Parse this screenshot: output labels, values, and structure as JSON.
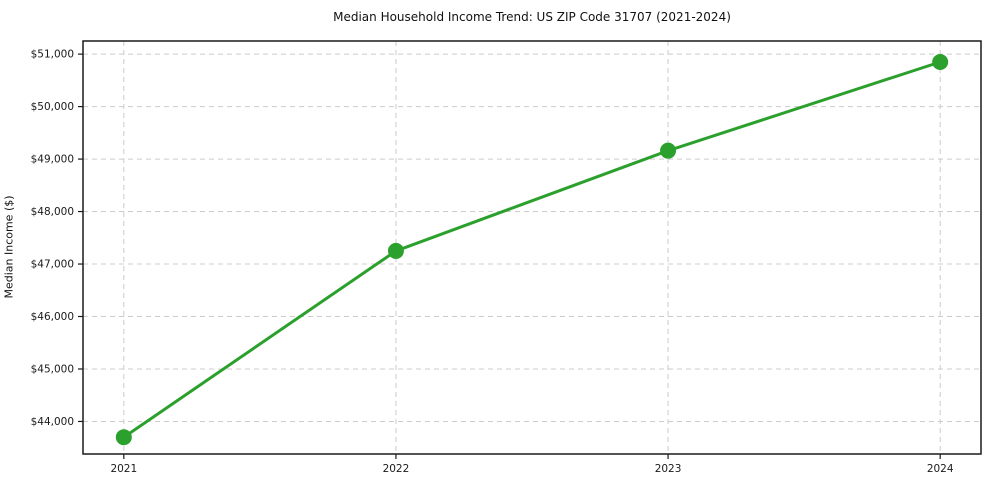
{
  "chart_data": {
    "type": "line",
    "title": "Median Household Income Trend: US ZIP Code 31707 (2021-2024)",
    "xlabel": "",
    "ylabel": "Median Income ($)",
    "x": [
      2021,
      2022,
      2023,
      2024
    ],
    "categories": [
      "2021",
      "2022",
      "2023",
      "2024"
    ],
    "series": [
      {
        "name": "Median Household Income",
        "values": [
          43700,
          47250,
          49160,
          50850
        ]
      }
    ],
    "xlim": [
      2020.85,
      2024.15
    ],
    "ylim": [
      43380,
      51250
    ],
    "yticks": [
      44000,
      45000,
      46000,
      47000,
      48000,
      49000,
      50000,
      51000
    ],
    "ytick_labels": [
      "$44,000",
      "$45,000",
      "$46,000",
      "$47,000",
      "$48,000",
      "$49,000",
      "$50,000",
      "$51,000"
    ],
    "xticks": [
      2021,
      2022,
      2023,
      2024
    ],
    "xtick_labels": [
      "2021",
      "2022",
      "2023",
      "2024"
    ],
    "grid": true,
    "grid_style": "dashed",
    "legend": "none",
    "colors": {
      "line": "#2ca02c",
      "marker": "#2ca02c",
      "grid": "#cccccc",
      "spine": "#1a1a1a",
      "background": "#ffffff"
    }
  }
}
